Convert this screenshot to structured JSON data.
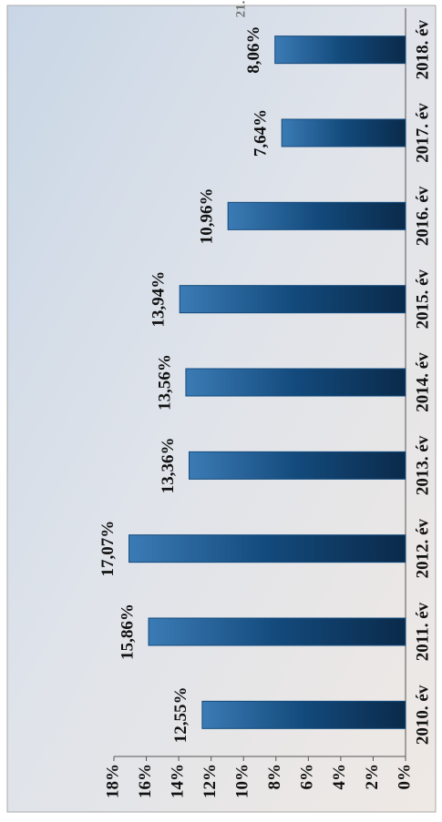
{
  "chart_data": {
    "type": "bar",
    "annotation": "21.",
    "categories": [
      "2010. év",
      "2011. év",
      "2012. év",
      "2013. év",
      "2014. év",
      "2015. év",
      "2016. év",
      "2017. év",
      "2018. év"
    ],
    "values": [
      12.55,
      15.86,
      17.07,
      13.36,
      13.56,
      13.94,
      10.96,
      7.64,
      8.06
    ],
    "value_labels": [
      "12,55%",
      "15,86%",
      "17,07%",
      "13,36%",
      "13,56%",
      "13,94%",
      "10,96%",
      "7,64%",
      "8,06%"
    ],
    "color": "#134a7c",
    "ylim": [
      0,
      18
    ],
    "yticks": [
      {
        "value": 0,
        "label": "0%"
      },
      {
        "value": 2,
        "label": "2%"
      },
      {
        "value": 4,
        "label": "4%"
      },
      {
        "value": 6,
        "label": "6%"
      },
      {
        "value": 8,
        "label": "8%"
      },
      {
        "value": 10,
        "label": "10%"
      },
      {
        "value": 12,
        "label": "12%"
      },
      {
        "value": 14,
        "label": "14%"
      },
      {
        "value": 16,
        "label": "16%"
      },
      {
        "value": 18,
        "label": "18%"
      }
    ]
  }
}
